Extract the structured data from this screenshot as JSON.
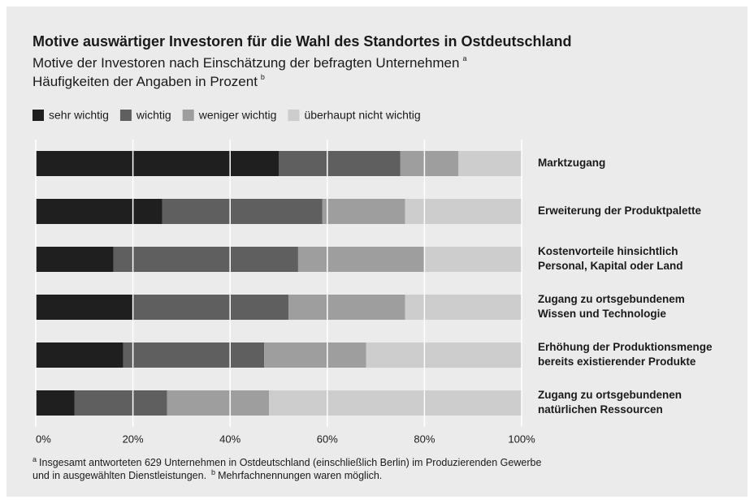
{
  "chart_data": {
    "type": "stacked_barh",
    "title": "Motive auswärtiger Investoren für die Wahl des Standortes in Ostdeutschland",
    "subtitle": [
      "Motive der Investoren nach Einschätzung der befragten Unternehmen",
      "Häufigkeiten der Angaben in Prozent"
    ],
    "subtitle_markers": [
      "a",
      "b"
    ],
    "categories": [
      [
        "Marktzugang"
      ],
      [
        "Erweiterung der Produktpalette"
      ],
      [
        "Kostenvorteile hinsichtlich",
        "Personal, Kapital oder Land"
      ],
      [
        "Zugang zu ortsgebundenem",
        "Wissen und Technologie"
      ],
      [
        "Erhöhung der Produktionsmenge",
        "bereits existierender Produkte"
      ],
      [
        "Zugang zu ortsgebundenen",
        "natürlichen Ressourcen"
      ]
    ],
    "series": [
      {
        "name": "sehr wichtig",
        "color": "#1f1f1f",
        "values": [
          50,
          26,
          16,
          20,
          18,
          8
        ]
      },
      {
        "name": "wichtig",
        "color": "#5f5f5f",
        "values": [
          25,
          33,
          38,
          32,
          29,
          19
        ]
      },
      {
        "name": "weniger wichtig",
        "color": "#9e9e9e",
        "values": [
          12,
          17,
          26,
          24,
          21,
          21
        ]
      },
      {
        "name": "überhaupt nicht wichtig",
        "color": "#cdcdcd",
        "values": [
          13,
          24,
          20,
          24,
          32,
          52
        ]
      }
    ],
    "xlim": [
      0,
      100
    ],
    "xticks": [
      {
        "value": 0,
        "label": "0%"
      },
      {
        "value": 20,
        "label": "20%"
      },
      {
        "value": 40,
        "label": "40%"
      },
      {
        "value": 60,
        "label": "60%"
      },
      {
        "value": 80,
        "label": "80%"
      },
      {
        "value": 100,
        "label": "100%"
      }
    ],
    "grid": true,
    "footnotes": [
      {
        "marker": "a",
        "text": "Insgesamt antworteten 629 Unternehmen in Ostdeutschland (einschließlich Berlin) im Produzierenden Gewerbe"
      },
      {
        "text": "und in ausgewählten Dienstleistungen."
      },
      {
        "marker": "b",
        "text": "Mehrfachnennungen waren möglich."
      }
    ]
  }
}
